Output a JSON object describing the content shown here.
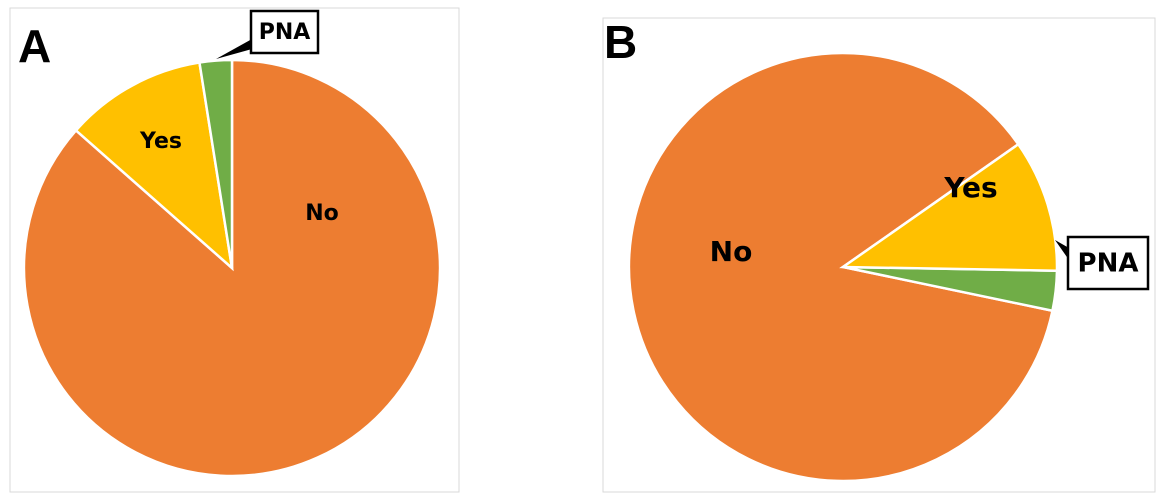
{
  "chart_data": [
    {
      "type": "pie",
      "panel": "A",
      "slices": [
        {
          "label": "No",
          "value": 86.5,
          "color": "#ED7D31"
        },
        {
          "label": "Yes",
          "value": 11.0,
          "color": "#FFC000"
        },
        {
          "label": "PNA",
          "value": 2.5,
          "color": "#70AD47"
        }
      ],
      "start_angle_deg": 0,
      "direction": "clockwise"
    },
    {
      "type": "pie",
      "panel": "B",
      "slices": [
        {
          "label": "No",
          "value": 87.0,
          "color": "#ED7D31"
        },
        {
          "label": "PNA",
          "value": 3.0,
          "color": "#70AD47"
        },
        {
          "label": "Yes",
          "value": 10.0,
          "color": "#FFC000"
        }
      ],
      "start_angle_deg": 55,
      "direction": "counterclockwise"
    }
  ]
}
